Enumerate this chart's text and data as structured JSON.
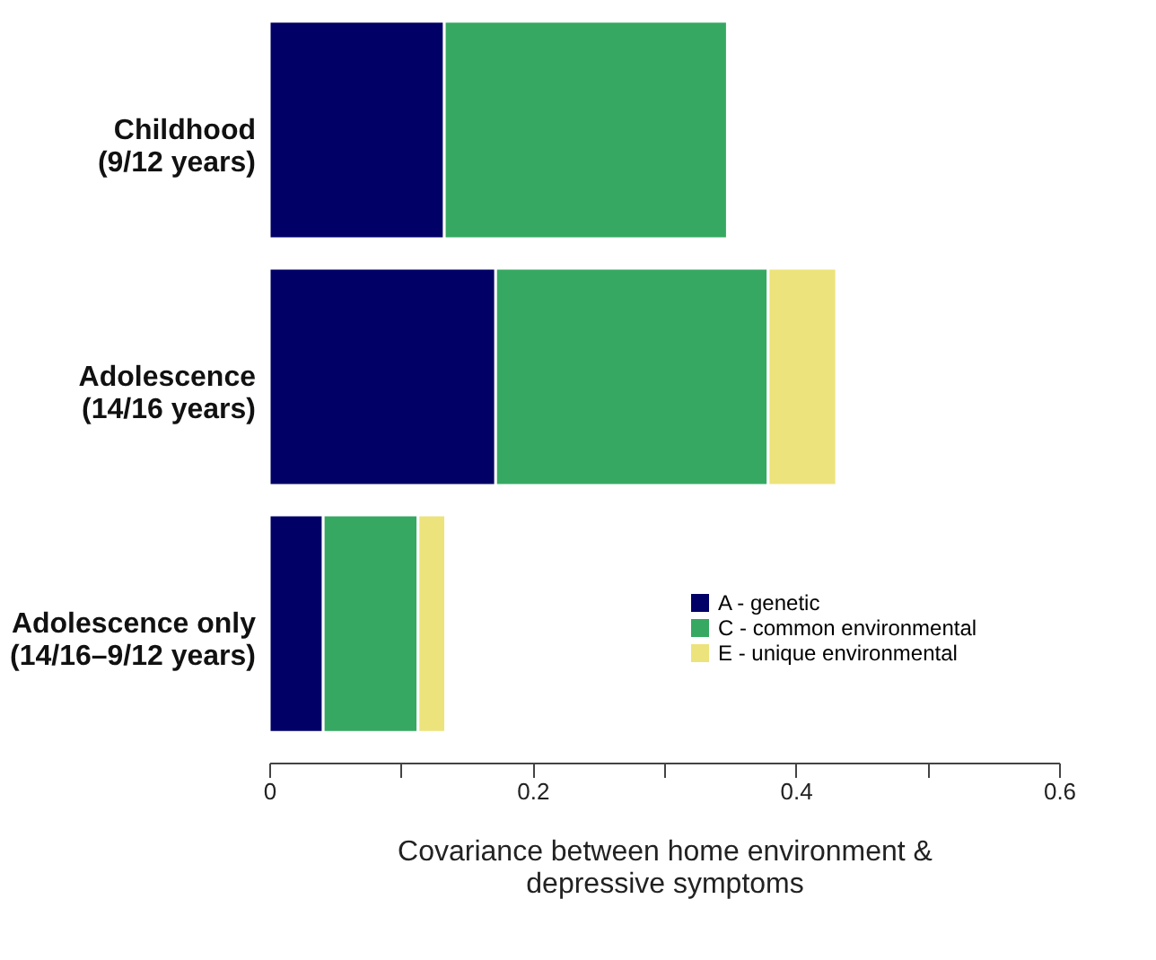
{
  "chart_data": {
    "type": "bar",
    "orientation": "horizontal",
    "stacked": true,
    "categories": [
      "Childhood (9/12 years)",
      "Adolescence (14/16 years)",
      "Adolescence only (14/16–9/12 years)"
    ],
    "series": [
      {
        "name": "A - genetic",
        "color": "#000066",
        "values": [
          0.133,
          0.172,
          0.041
        ]
      },
      {
        "name": "C - common environmental",
        "color": "#36a862",
        "values": [
          0.215,
          0.207,
          0.072
        ]
      },
      {
        "name": "E - unique environmental",
        "color": "#ede37c",
        "values": [
          null,
          0.052,
          0.021
        ]
      }
    ],
    "xlabel": "Covariance between home environment & depressive symptoms",
    "xlim": [
      0,
      0.6
    ],
    "xticks": [
      0,
      {
        "value": 0.1,
        "label": null
      },
      0.2,
      {
        "value": 0.3,
        "label": null
      },
      0.4,
      {
        "value": 0.5,
        "label": null
      },
      0.6
    ],
    "grid": false,
    "legend": "bottom right"
  }
}
